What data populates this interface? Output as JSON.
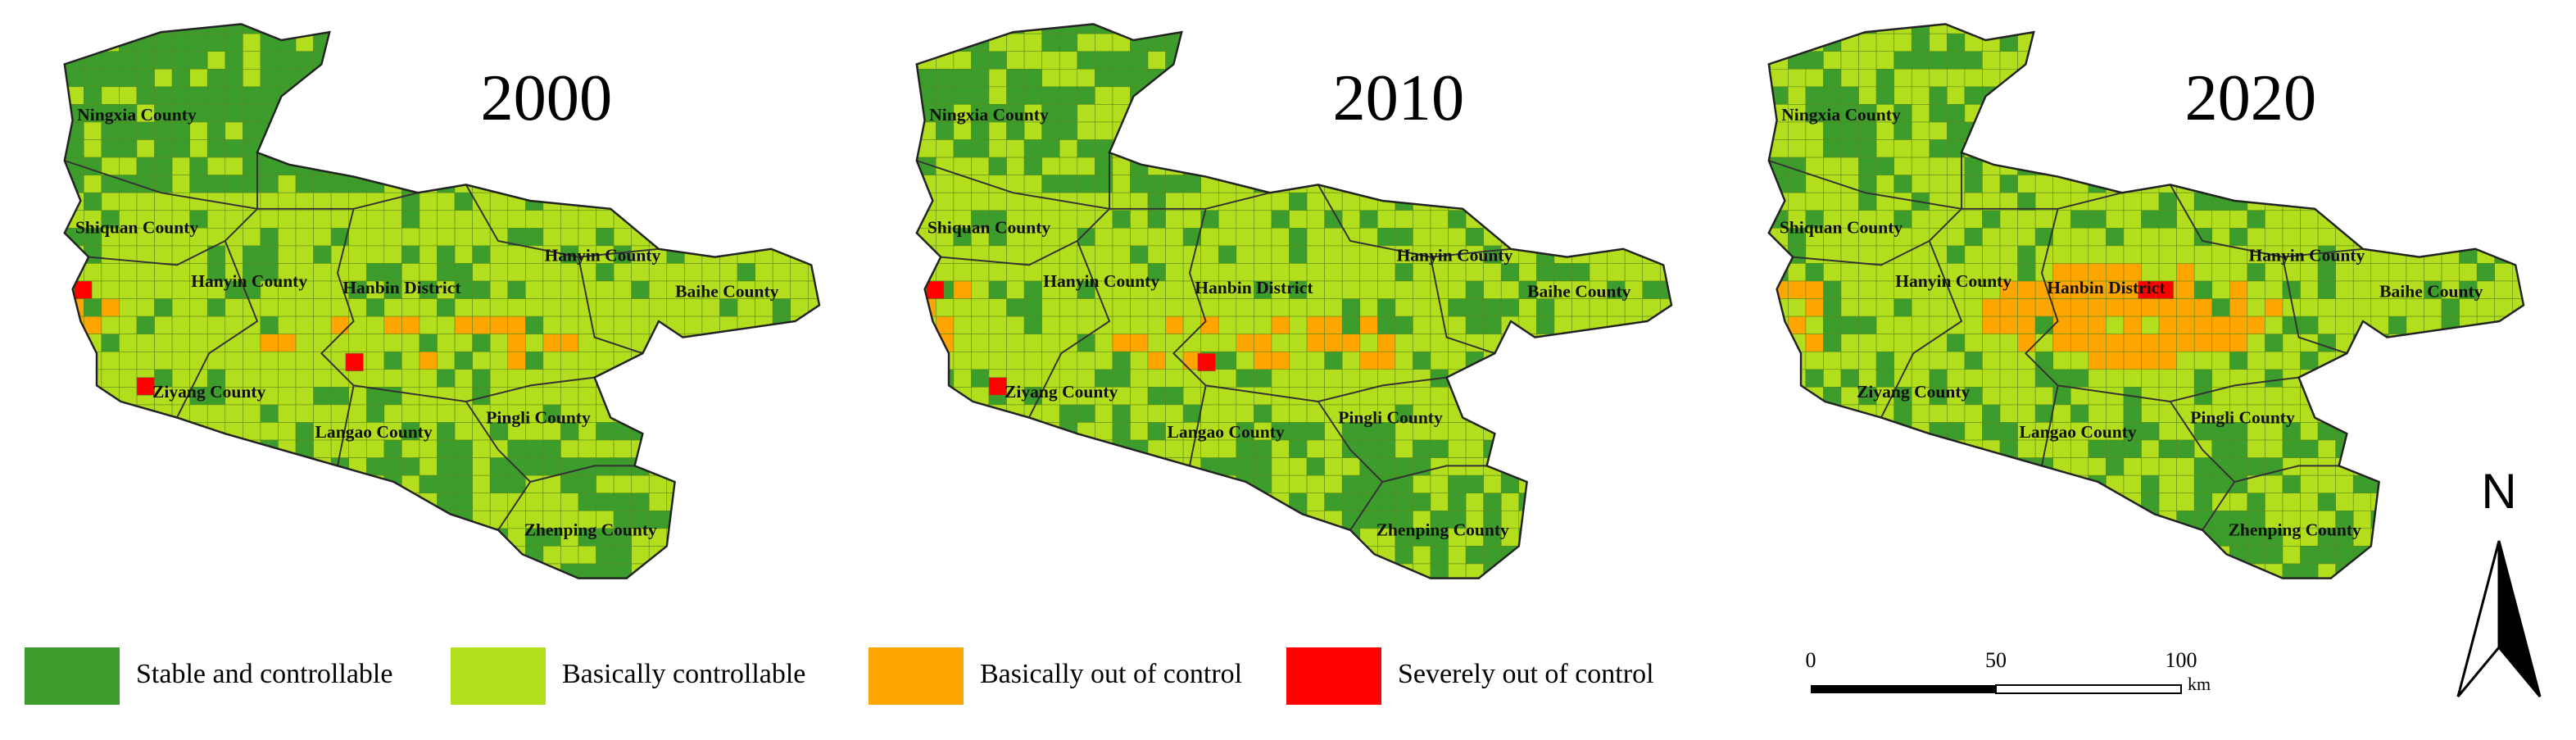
{
  "maps": [
    {
      "year": "2000",
      "labels": [
        "Ningxia County",
        "Shiquan County",
        "Hanyin County",
        "Hanbin District",
        "Hanyin County",
        "Baihe County",
        "Ziyang County",
        "Langao County",
        "Pingli County",
        "Zhenping County"
      ]
    },
    {
      "year": "2010",
      "labels": [
        "Ningxia County",
        "Shiquan County",
        "Hanyin County",
        "Hanbin District",
        "Hanyin County",
        "Baihe County",
        "Ziyang County",
        "Langao County",
        "Pingli County",
        "Zhenping County"
      ]
    },
    {
      "year": "2020",
      "labels": [
        "Ningxia County",
        "Shiquan County",
        "Hanyin County",
        "Hanbin District",
        "Hanyin County",
        "Baihe County",
        "Ziyang County",
        "Langao County",
        "Pingli County",
        "Zhenping County"
      ]
    }
  ],
  "legend": [
    "Stable and controllable",
    "Basically controllable",
    "Basically out of control",
    "Severely out of control"
  ],
  "scale_bar": {
    "ticks": [
      "0",
      "50",
      "100"
    ],
    "unit": "km"
  },
  "north": "N"
}
